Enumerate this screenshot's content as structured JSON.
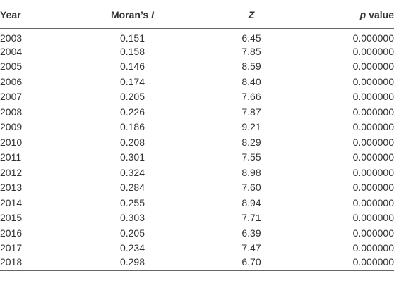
{
  "table": {
    "header": [
      [
        "Year"
      ],
      [
        "Moran’s",
        "I"
      ],
      [
        "Z"
      ],
      [
        "p",
        "value"
      ]
    ],
    "rows": [
      [
        "2003",
        "0.151",
        "6.45",
        "0.000000"
      ],
      [
        "2004",
        "0.158",
        "7.85",
        "0.000000"
      ],
      [
        "2005",
        "0.146",
        "8.59",
        "0.000000"
      ],
      [
        "2006",
        "0.174",
        "8.40",
        "0.000000"
      ],
      [
        "2007",
        "0.205",
        "7.66",
        "0.000000"
      ],
      [
        "2008",
        "0.226",
        "7.87",
        "0.000000"
      ],
      [
        "2009",
        "0.186",
        "9.21",
        "0.000000"
      ],
      [
        "2010",
        "0.208",
        "8.29",
        "0.000000"
      ],
      [
        "2011",
        "0.301",
        "7.55",
        "0.000000"
      ],
      [
        "2012",
        "0.324",
        "8.98",
        "0.000000"
      ],
      [
        "2013",
        "0.284",
        "7.60",
        "0.000000"
      ],
      [
        "2014",
        "0.255",
        "8.94",
        "0.000000"
      ],
      [
        "2015",
        "0.303",
        "7.71",
        "0.000000"
      ],
      [
        "2016",
        "0.205",
        "6.39",
        "0.000000"
      ],
      [
        "2017",
        "0.234",
        "7.47",
        "0.000000"
      ],
      [
        "2018",
        "0.298",
        "6.70",
        "0.000000"
      ]
    ]
  }
}
